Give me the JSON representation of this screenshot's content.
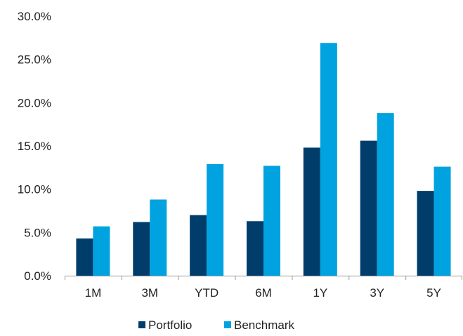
{
  "chart_data": {
    "type": "bar",
    "categories": [
      "1M",
      "3M",
      "YTD",
      "6M",
      "1Y",
      "3Y",
      "5Y"
    ],
    "series": [
      {
        "name": "Portfolio",
        "values": [
          4.3,
          6.2,
          7.0,
          6.3,
          14.8,
          15.6,
          9.8
        ],
        "color": "#003d6b"
      },
      {
        "name": "Benchmark",
        "values": [
          5.7,
          8.8,
          12.9,
          12.7,
          26.9,
          18.8,
          12.6
        ],
        "color": "#00a3e0"
      }
    ],
    "y_ticks": [
      "0.0%",
      "5.0%",
      "10.0%",
      "15.0%",
      "20.0%",
      "25.0%",
      "30.0%"
    ],
    "ylim": [
      0,
      30
    ],
    "legend_position": "bottom",
    "grid": false
  }
}
